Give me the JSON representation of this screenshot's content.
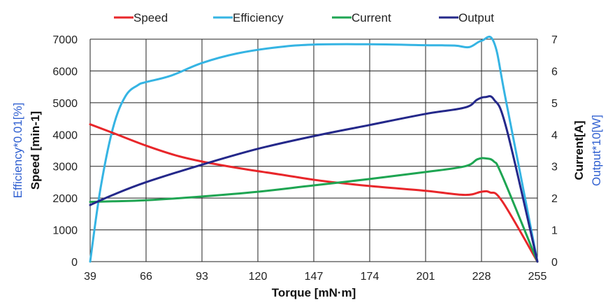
{
  "chart_data": {
    "type": "line",
    "xlabel": "Torque [mN·m]",
    "ylabel_left": "Speed [min-1]",
    "ylabel_left_secondary": "Efficiency*0.01[%]",
    "ylabel_right": "Current[A]",
    "ylabel_right_secondary": "Output*10[W]",
    "xlim": [
      39,
      255
    ],
    "ylim_left": [
      0,
      7000
    ],
    "ylim_right": [
      0,
      7
    ],
    "x_ticks": [
      39,
      66,
      93,
      120,
      147,
      174,
      201,
      228,
      255
    ],
    "y_left_ticks": [
      0,
      1000,
      2000,
      3000,
      4000,
      5000,
      6000,
      7000
    ],
    "y_right_ticks": [
      0,
      1,
      2,
      3,
      4,
      5,
      6,
      7
    ],
    "grid": true,
    "legend_position": "top",
    "series": [
      {
        "name": "Speed",
        "color": "#e8262a",
        "axis": "left",
        "x": [
          39,
          50,
          66,
          80,
          93,
          110,
          130,
          150,
          174,
          201,
          220,
          228,
          232,
          238,
          255
        ],
        "values": [
          4320,
          4050,
          3650,
          3350,
          3150,
          2950,
          2750,
          2550,
          2380,
          2230,
          2100,
          2200,
          2180,
          1900,
          0
        ]
      },
      {
        "name": "Efficiency",
        "color": "#35b4e3",
        "axis": "left",
        "x": [
          39,
          44,
          50,
          56,
          62,
          66,
          78,
          93,
          110,
          130,
          147,
          174,
          201,
          215,
          222,
          228,
          234,
          240,
          255
        ],
        "values": [
          0,
          2300,
          4200,
          5200,
          5550,
          5650,
          5850,
          6250,
          6550,
          6750,
          6830,
          6840,
          6810,
          6800,
          6750,
          6950,
          6900,
          5000,
          0
        ]
      },
      {
        "name": "Current",
        "color": "#1ea552",
        "axis": "right",
        "x": [
          39,
          50,
          66,
          93,
          120,
          147,
          174,
          201,
          220,
          226,
          230,
          234,
          238,
          255
        ],
        "values": [
          1.88,
          1.9,
          1.93,
          2.05,
          2.2,
          2.4,
          2.6,
          2.82,
          3.0,
          3.22,
          3.25,
          3.15,
          2.7,
          0
        ]
      },
      {
        "name": "Output",
        "color": "#24288a",
        "axis": "right",
        "x": [
          39,
          50,
          66,
          93,
          120,
          147,
          174,
          201,
          220,
          226,
          230,
          234,
          240,
          255
        ],
        "values": [
          1.78,
          2.1,
          2.5,
          3.05,
          3.55,
          3.95,
          4.3,
          4.65,
          4.85,
          5.1,
          5.18,
          5.1,
          4.2,
          0
        ]
      }
    ]
  }
}
